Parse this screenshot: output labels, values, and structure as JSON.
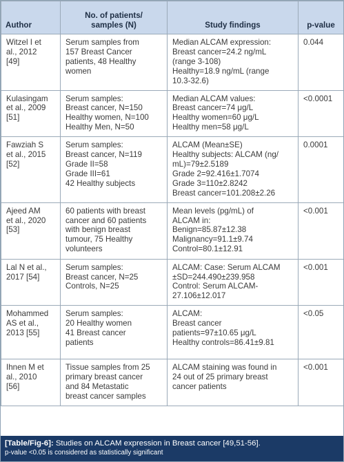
{
  "table": {
    "headers": {
      "author": "Author",
      "patients": [
        "No. of patients/",
        "samples (N)"
      ],
      "findings": "Study findings",
      "pvalue": "p-value"
    },
    "rows": [
      {
        "author": [
          "Witzel I et",
          "al., 2012",
          "[49]"
        ],
        "patients": [
          "Serum samples from",
          "157 Breast Cancer",
          "patients, 48 Healthy",
          "women"
        ],
        "findings": [
          "Median ALCAM expression:",
          "Breast cancer=24.2 ng/mL",
          "(range 3-108)",
          "Healthy=18.9 ng/mL (range",
          "10.3-32.6)"
        ],
        "pvalue": "0.044"
      },
      {
        "author": [
          "Kulasingam",
          "et al., 2009",
          "[51]"
        ],
        "patients": [
          "Serum samples:",
          "Breast cancer, N=150",
          "Healthy women, N=100",
          "Healthy Men, N=50"
        ],
        "findings": [
          "Median ALCAM values:",
          "Breast cancer=74 μg/L",
          "Healthy women=60 μg/L",
          "Healthy men=58 μg/L"
        ],
        "pvalue": "<0.0001"
      },
      {
        "author": [
          "Fawziah S",
          "et al., 2015",
          "[52]"
        ],
        "patients": [
          "Serum samples:",
          "Breast cancer, N=119",
          "Grade II=58",
          "Grade III=61",
          "42 Healthy subjects"
        ],
        "findings": [
          "ALCAM (Mean±SE)",
          "Healthy subjects: ALCAM (ng/",
          "mL)=79±2.5189",
          "Grade 2=92.416±1.7074",
          "Grade 3=110±2.8242",
          "Breast cancer=101.208±2.26"
        ],
        "pvalue": "0.0001"
      },
      {
        "author": [
          "Ajeed AM",
          "et al., 2020",
          "[53]"
        ],
        "patients": [
          "60 patients with breast",
          "cancer and 60 patients",
          "with benign breast",
          "tumour, 75 Healthy",
          "volunteers"
        ],
        "findings": [
          "Mean levels (pg/mL) of",
          "ALCAM in:",
          "Benign=85.87±12.38",
          "Malignancy=91.1±9.74",
          "Control=80.1±12.91"
        ],
        "pvalue": "<0.001"
      },
      {
        "author": [
          "Lal N et al.,",
          "2017 [54]"
        ],
        "patients": [
          "Serum samples:",
          "Breast cancer, N=25",
          "Controls, N=25"
        ],
        "findings": [
          "ALCAM: Case: Serum ALCAM",
          "±SD=244.490±239.958",
          "Control: Serum ALCAM-",
          "27.106±12.017"
        ],
        "pvalue": "<0.001"
      },
      {
        "author": [
          "Mohammed",
          "AS et al.,",
          "2013 [55]"
        ],
        "patients": [
          "Serum samples:",
          "20 Healthy women",
          "41 Breast cancer",
          "patients"
        ],
        "findings": [
          "ALCAM:",
          "Breast cancer",
          "patients=97±10.65 μg/L",
          "Healthy controls=86.41±9.81"
        ],
        "pvalue": "<0.05"
      },
      {
        "author": [
          "Ihnen M et",
          "al., 2010",
          "[56]"
        ],
        "patients": [
          "Tissue samples from 25",
          "primary breast cancer",
          "and 84 Metastatic",
          "breast cancer samples"
        ],
        "findings": [
          "ALCAM staining was found in",
          "24 out of 25 primary breast",
          "cancer patients"
        ],
        "pvalue": "<0.001"
      }
    ]
  },
  "caption": {
    "label": "[Table/Fig-6]:",
    "text": " Studies on ALCAM expression in Breast cancer [49,51-56].",
    "note": "p-value <0.05 is considered as statistically significant"
  }
}
